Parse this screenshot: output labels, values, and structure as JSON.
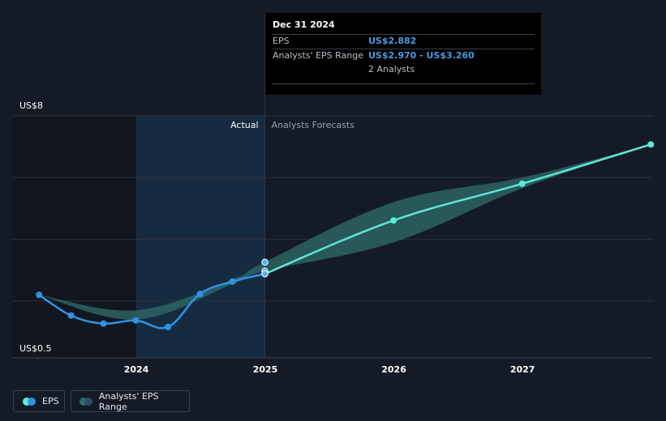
{
  "tooltip": {
    "date": "Dec 31 2024",
    "eps_label": "EPS",
    "eps_value": "US$2.882",
    "range_label": "Analysts' EPS Range",
    "range_value": "US$2.970 - US$3.260",
    "analysts": "2 Analysts"
  },
  "labels": {
    "actual": "Actual",
    "forecast": "Analysts Forecasts"
  },
  "legend": {
    "eps": "EPS",
    "range": "Analysts' EPS Range"
  },
  "colors": {
    "background": "#151b26",
    "actual_line": "#2e93e6",
    "forecast_line": "#5ee7d5",
    "range_fill": "#2f6e6a",
    "actual_shade": "#18324a"
  },
  "chart_data": {
    "type": "line",
    "y_axis": {
      "min": 0.5,
      "max": 8,
      "tick_labels": [
        "US$8",
        "US$0.5"
      ]
    },
    "x_axis": {
      "tick_labels": [
        "2024",
        "2025",
        "2026",
        "2027"
      ]
    },
    "series": [
      {
        "name": "EPS",
        "kind": "actual",
        "points": [
          {
            "x": "2023-03-31",
            "y": 2.2
          },
          {
            "x": "2023-06-30",
            "y": 1.53
          },
          {
            "x": "2023-09-30",
            "y": 1.27
          },
          {
            "x": "2023-12-31",
            "y": 1.37
          },
          {
            "x": "2024-03-31",
            "y": 1.16
          },
          {
            "x": "2024-06-30",
            "y": 2.23
          },
          {
            "x": "2024-09-30",
            "y": 2.63
          },
          {
            "x": "2024-12-31",
            "y": 2.88
          }
        ]
      },
      {
        "name": "EPS",
        "kind": "forecast",
        "points": [
          {
            "x": "2024-12-31",
            "y": 2.88
          },
          {
            "x": "2025-12-31",
            "y": 4.61
          },
          {
            "x": "2026-12-31",
            "y": 5.8
          },
          {
            "x": "2027-12-31",
            "y": 7.07
          }
        ]
      },
      {
        "name": "Analysts' EPS Range",
        "kind": "range",
        "points": [
          {
            "x": "2023-03-31",
            "low": 2.2,
            "high": 2.2
          },
          {
            "x": "2023-12-31",
            "low": 1.4,
            "high": 1.7
          },
          {
            "x": "2024-09-30",
            "low": 2.55,
            "high": 2.7
          },
          {
            "x": "2024-12-31",
            "low": 2.97,
            "high": 3.26
          },
          {
            "x": "2025-12-31",
            "low": 3.9,
            "high": 5.2
          },
          {
            "x": "2026-12-31",
            "low": 5.65,
            "high": 6.0
          },
          {
            "x": "2027-12-31",
            "low": 7.07,
            "high": 7.07
          }
        ]
      }
    ],
    "markers_at_2024_12_31": [
      3.26,
      2.97,
      2.882
    ]
  }
}
